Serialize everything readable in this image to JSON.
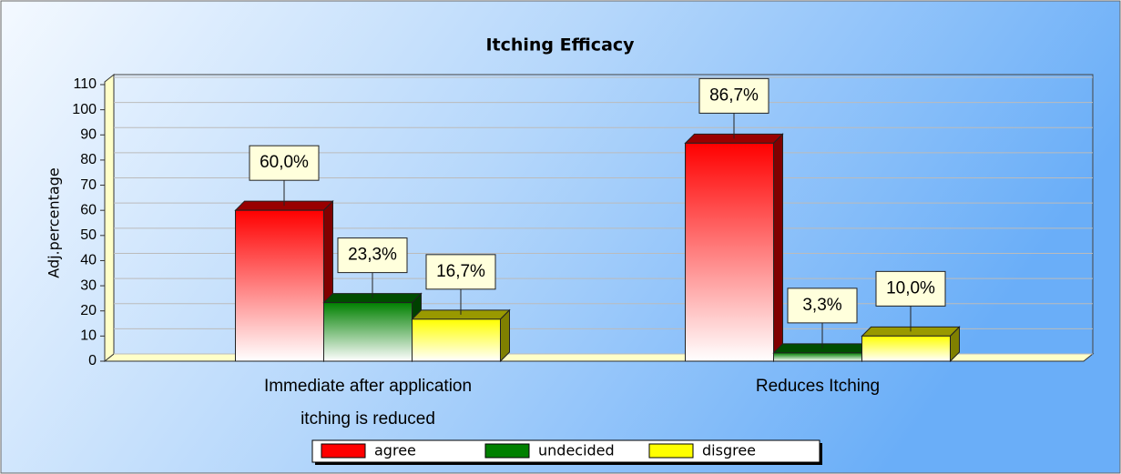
{
  "chart_data": {
    "type": "bar3d",
    "title": "Itching Efficacy",
    "y_label": "Adj.percentage",
    "categories": [
      "Immediate after application itching is reduced",
      "Reduces Itching"
    ],
    "series": [
      {
        "name": "agree",
        "color": "#ff0000",
        "values": [
          60.0,
          86.7
        ],
        "value_labels": [
          "60,0%",
          "86,7%"
        ]
      },
      {
        "name": "undecided",
        "color": "#008000",
        "values": [
          23.3,
          3.3
        ],
        "value_labels": [
          "23,3%",
          "3,3%"
        ]
      },
      {
        "name": "disgree",
        "color": "#ffff00",
        "values": [
          16.7,
          10.0
        ],
        "value_labels": [
          "16,7%",
          "10,0%"
        ]
      }
    ],
    "ylim": [
      0,
      110
    ],
    "yticks": [
      0,
      10,
      20,
      30,
      40,
      50,
      60,
      70,
      80,
      90,
      100,
      110
    ],
    "grid": true,
    "legend": "bottom"
  }
}
